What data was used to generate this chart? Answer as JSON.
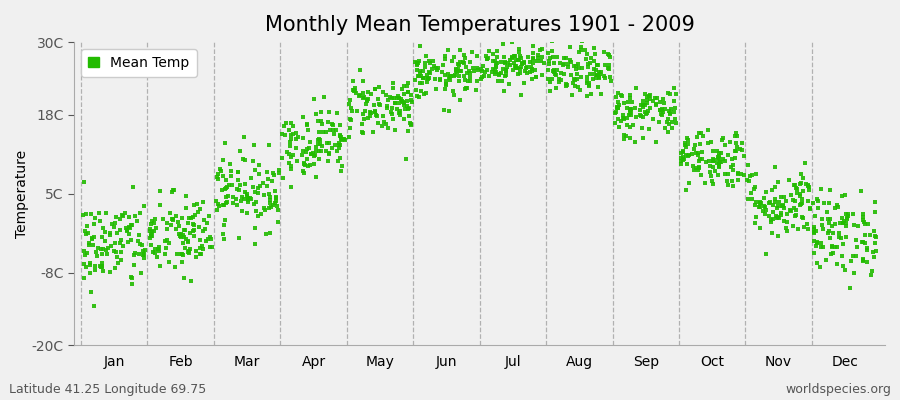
{
  "title": "Monthly Mean Temperatures 1901 - 2009",
  "ylabel": "Temperature",
  "xlabel": "",
  "yticks": [
    -20,
    -8,
    5,
    18,
    30
  ],
  "ytick_labels": [
    "-20C",
    "-8C",
    "5C",
    "18C",
    "30C"
  ],
  "ylim": [
    -20,
    30
  ],
  "months": [
    "Jan",
    "Feb",
    "Mar",
    "Apr",
    "May",
    "Jun",
    "Jul",
    "Aug",
    "Sep",
    "Oct",
    "Nov",
    "Dec"
  ],
  "monthly_means": [
    -3.5,
    -2.0,
    5.5,
    13.5,
    19.5,
    24.5,
    26.5,
    25.0,
    18.5,
    11.0,
    3.5,
    -1.5
  ],
  "monthly_stds": [
    3.8,
    3.5,
    3.2,
    2.8,
    2.5,
    2.0,
    1.8,
    2.0,
    2.2,
    2.5,
    3.0,
    3.5
  ],
  "n_years": 109,
  "dot_color": "#22bb00",
  "background_color": "#f0f0f0",
  "plot_bg_color": "#f0f0f0",
  "legend_label": "Mean Temp",
  "bottom_left_text": "Latitude 41.25 Longitude 69.75",
  "bottom_right_text": "worldspecies.org",
  "title_fontsize": 15,
  "axis_fontsize": 10,
  "tick_fontsize": 10,
  "annotation_fontsize": 9,
  "dot_size": 5,
  "seed": 42,
  "dashed_line_color": "#888888",
  "spine_color": "#aaaaaa"
}
